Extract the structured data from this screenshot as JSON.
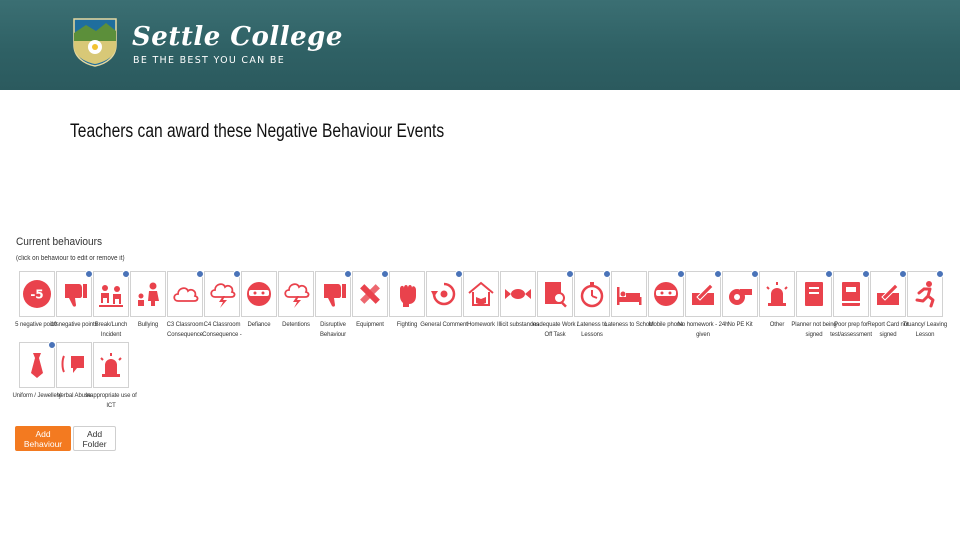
{
  "header": {
    "brand_name": "Settle College",
    "tagline": "BE THE BEST YOU CAN BE",
    "colors": {
      "background": "#2f6165",
      "text": "#ffffff"
    }
  },
  "heading": "Teachers can award these Negative Behaviour Events",
  "panel": {
    "title": "Current behaviours",
    "subtitle": "(click on behaviour to edit or remove it)"
  },
  "accent_color": "#e9424c",
  "badge_color": "#4a73b8",
  "behaviours": [
    {
      "label": "5 negative points",
      "icon": "minus-five-points-icon",
      "badge": false
    },
    {
      "label": "10 negative points",
      "icon": "thumbs-down-icon",
      "badge": true
    },
    {
      "label": "Break/Lunch Incident",
      "icon": "playground-incident-icon",
      "badge": true
    },
    {
      "label": "Bullying",
      "icon": "bullying-icon",
      "badge": false
    },
    {
      "label": "C3 Classroom Consequence",
      "icon": "cloud-icon",
      "badge": true
    },
    {
      "label": "C4 Classroom Consequence -",
      "icon": "storm-cloud-icon",
      "badge": true
    },
    {
      "label": "Defiance",
      "icon": "ninja-icon",
      "badge": false
    },
    {
      "label": "Detentions",
      "icon": "storm-cloud-icon",
      "badge": false
    },
    {
      "label": "Disruptive Behaviour",
      "icon": "thumbs-down-icon",
      "badge": true
    },
    {
      "label": "Equipment",
      "icon": "ruler-pencil-icon",
      "badge": true
    },
    {
      "label": "Fighting",
      "icon": "fist-icon",
      "badge": false
    },
    {
      "label": "General Comment",
      "icon": "refresh-comment-icon",
      "badge": true
    },
    {
      "label": "Homework",
      "icon": "house-book-icon",
      "badge": false
    },
    {
      "label": "Illicit substances",
      "icon": "candy-icon",
      "badge": false
    },
    {
      "label": "Inadequate Work / Off Task",
      "icon": "document-search-icon",
      "badge": true
    },
    {
      "label": "Lateness to Lessons",
      "icon": "stopwatch-icon",
      "badge": true
    },
    {
      "label": "Lateness to School",
      "icon": "bed-icon",
      "badge": false
    },
    {
      "label": "Mobile phone",
      "icon": "ninja-icon",
      "badge": true
    },
    {
      "label": "No homework - 24h given",
      "icon": "document-pen-icon",
      "badge": true
    },
    {
      "label": "No PE Kit",
      "icon": "whistle-icon",
      "badge": true
    },
    {
      "label": "Other",
      "icon": "siren-icon",
      "badge": false
    },
    {
      "label": "Planner not being signed",
      "icon": "planner-book-icon",
      "badge": true
    },
    {
      "label": "Poor prep for test/assessment",
      "icon": "book-icon",
      "badge": true
    },
    {
      "label": "Report Card not signed",
      "icon": "document-pen-icon",
      "badge": true
    },
    {
      "label": "Truancy/ Leaving Lesson",
      "icon": "running-figure-icon",
      "badge": true
    },
    {
      "label": "Uniform / Jewellery",
      "icon": "tie-icon",
      "badge": true
    },
    {
      "label": "Verbal Abuse",
      "icon": "speech-icon",
      "badge": false
    },
    {
      "label": "Inappropriate use of ICT",
      "icon": "siren-icon",
      "badge": false
    }
  ],
  "buttons": {
    "add_behaviour": "Add Behaviour",
    "add_folder": "Add Folder",
    "primary_color": "#f37a20"
  }
}
